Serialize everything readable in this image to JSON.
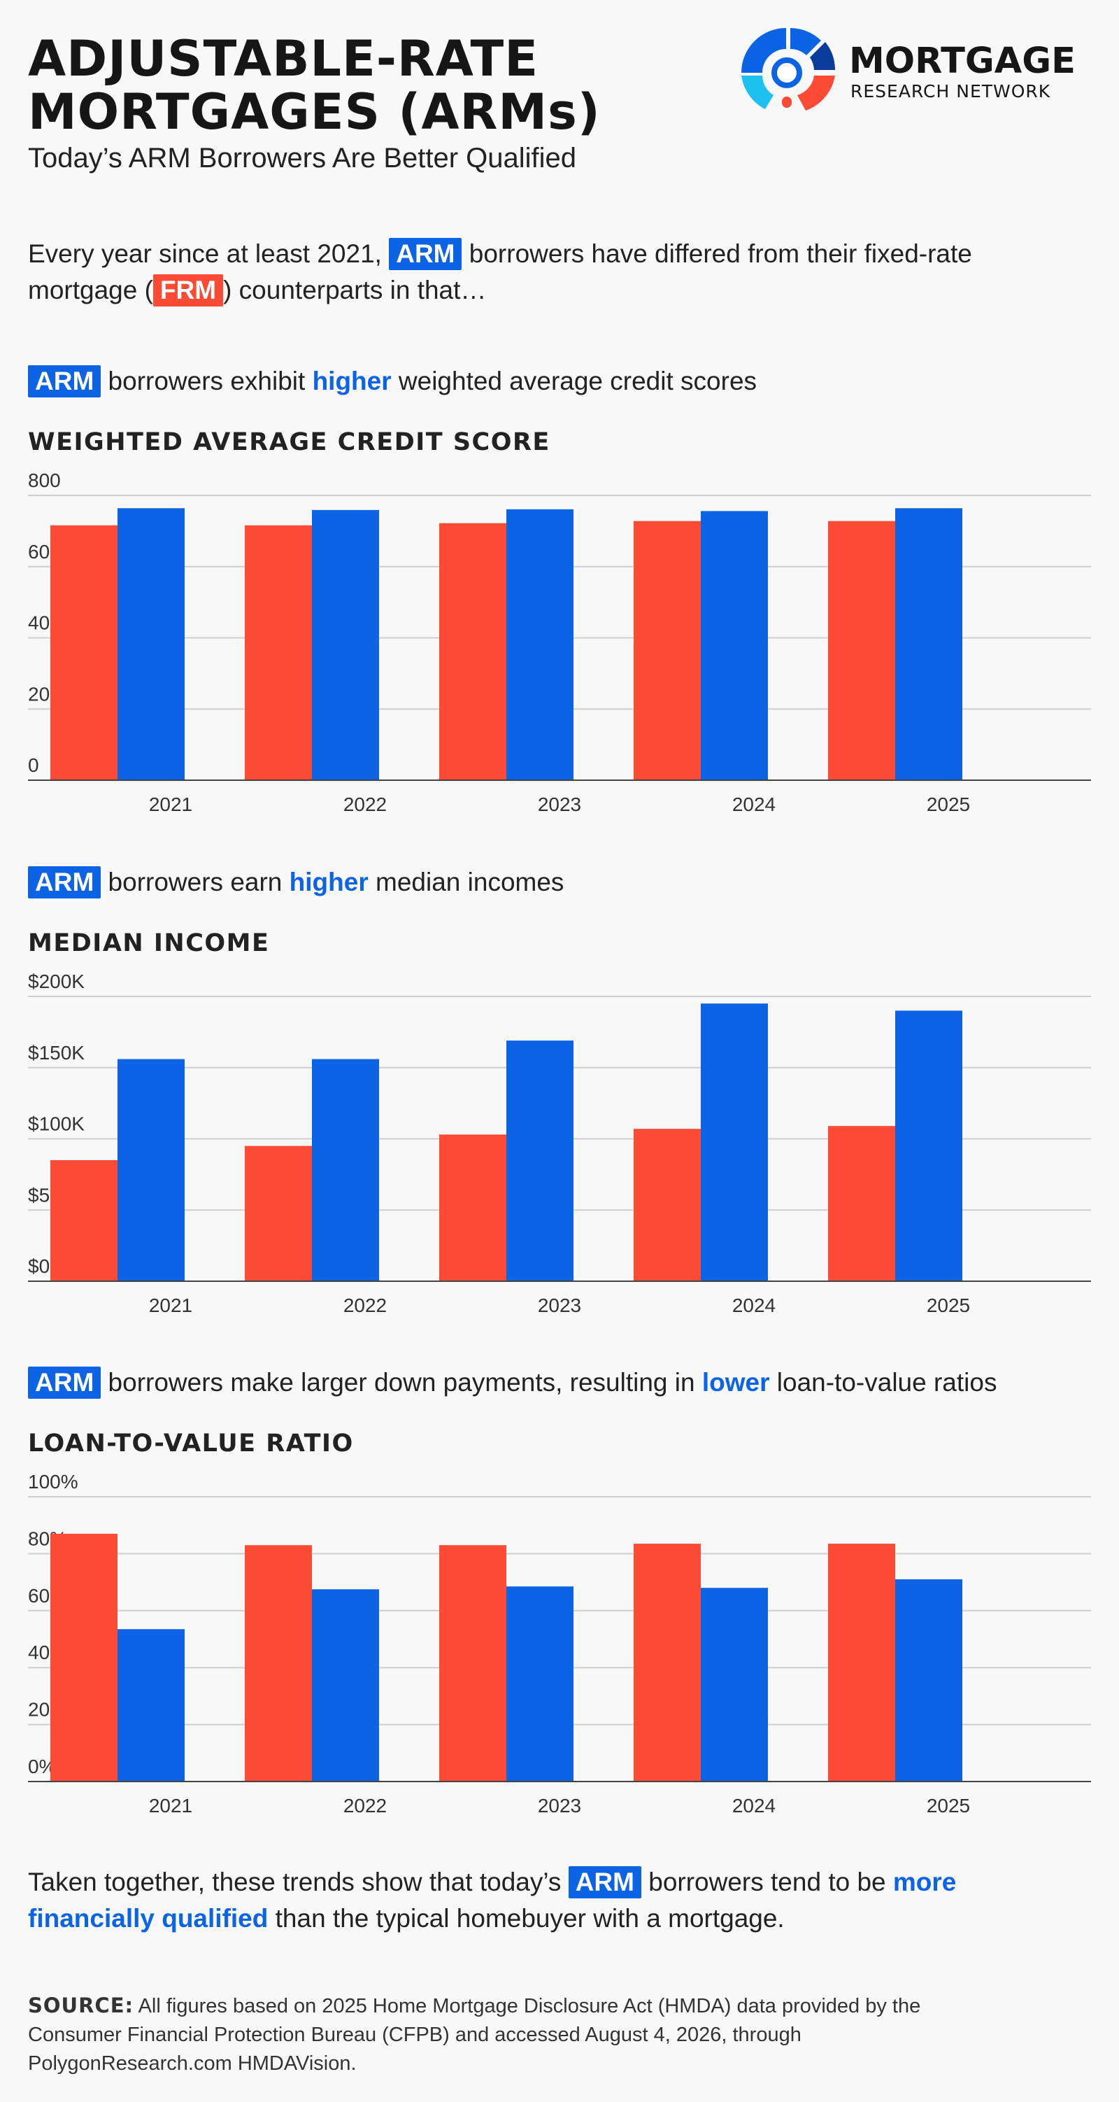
{
  "header": {
    "title_line1": "ADJUSTABLE-RATE",
    "title_line2": "MORTGAGES (ARMs)",
    "subtitle": "Today’s ARM Borrowers Are Better Qualified",
    "logo_name": "MORTGAGE",
    "logo_sub": "RESEARCH NETWORK"
  },
  "colors": {
    "arm": "#0c63e4",
    "frm": "#fc4b35",
    "grid": "#cfcfd3",
    "axis": "#444444"
  },
  "intro": {
    "part1": "Every year since at least 2021,",
    "arm": "ARM",
    "part2": "borrowers have differed from their fixed-rate",
    "part3": "mortgage (",
    "frm": "FRM",
    "part4": ") counterparts in that…"
  },
  "sections": [
    {
      "chip": "ARM",
      "before": "borrowers exhibit",
      "highlight": "higher",
      "after": "weighted average credit scores"
    },
    {
      "chip": "ARM",
      "before": "borrowers earn",
      "highlight": "higher",
      "after": "median incomes"
    },
    {
      "chip": "ARM",
      "before": "borrowers make larger down payments, resulting in",
      "highlight": "lower",
      "after": "loan-to-value ratios"
    }
  ],
  "chart_data": [
    {
      "type": "bar",
      "title": "WEIGHTED AVERAGE CREDIT SCORE",
      "categories": [
        "2021",
        "2022",
        "2023",
        "2024",
        "2025"
      ],
      "series": [
        {
          "name": "FRM",
          "values": [
            716,
            716,
            722,
            728,
            728
          ]
        },
        {
          "name": "ARM",
          "values": [
            764,
            759,
            761,
            756,
            764
          ]
        }
      ],
      "ylim": [
        0,
        800
      ],
      "yticks": [
        0,
        200,
        400,
        600,
        800
      ],
      "ytick_labels": [
        "0",
        "200",
        "400",
        "600",
        "800"
      ],
      "grid": true
    },
    {
      "type": "bar",
      "title": "MEDIAN INCOME",
      "categories": [
        "2021",
        "2022",
        "2023",
        "2024",
        "2025"
      ],
      "series": [
        {
          "name": "FRM",
          "values": [
            85000,
            95000,
            103000,
            107000,
            109000
          ]
        },
        {
          "name": "ARM",
          "values": [
            156000,
            156000,
            169000,
            195000,
            190000
          ]
        }
      ],
      "ylim": [
        0,
        200000
      ],
      "yticks": [
        0,
        50000,
        100000,
        150000,
        200000
      ],
      "ytick_labels": [
        "$0",
        "$50K",
        "$100K",
        "$150K",
        "$200K"
      ],
      "grid": true
    },
    {
      "type": "bar",
      "title": "LOAN-TO-VALUE RATIO",
      "categories": [
        "2021",
        "2022",
        "2023",
        "2024",
        "2025"
      ],
      "series": [
        {
          "name": "FRM",
          "values": [
            87,
            83,
            83,
            83.5,
            83.5
          ]
        },
        {
          "name": "ARM",
          "values": [
            53.5,
            67.5,
            68.5,
            68,
            71
          ]
        }
      ],
      "ylim": [
        0,
        100
      ],
      "yticks": [
        0,
        20,
        40,
        60,
        80,
        100
      ],
      "ytick_labels": [
        "0%",
        "20%",
        "40%",
        "60%",
        "80%",
        "100%"
      ],
      "grid": true
    }
  ],
  "conclusion": {
    "part1": "Taken together, these trends show that today’s",
    "arm": "ARM",
    "part2": "borrowers tend to be",
    "highlight1": "more",
    "highlight2": "financially qualified",
    "part3": "than the typical homebuyer with a mortgage."
  },
  "source": {
    "label": "SOURCE:",
    "text": "All figures based on 2025 Home Mortgage Disclosure Act (HMDA) data provided by the Consumer Financial Protection Bureau (CFPB) and accessed August 4, 2026, through PolygonResearch.com HMDAVision."
  }
}
